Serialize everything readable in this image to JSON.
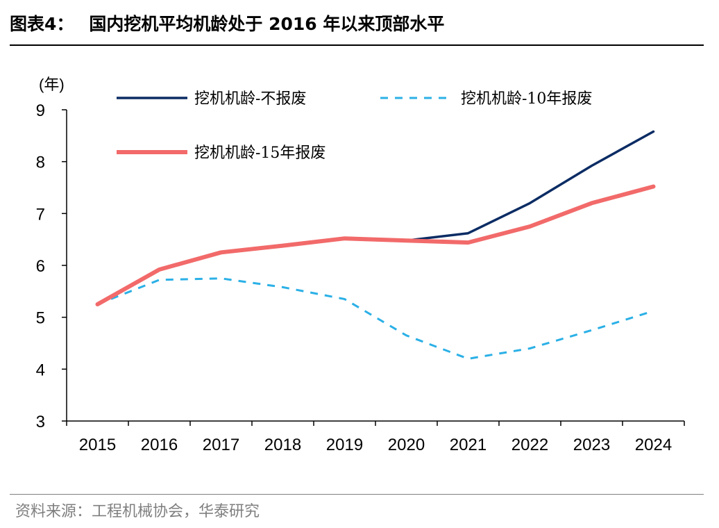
{
  "header": {
    "figure_label": "图表4：",
    "title": "国内挖机平均机龄处于 2016 年以来顶部水平"
  },
  "footer": {
    "source": "资料来源：工程机械协会，华泰研究"
  },
  "colors": {
    "series_no_scrap": "#0b2c64",
    "series_10yr": "#2bb0e6",
    "series_15yr": "#f26a6a",
    "axis": "#000000"
  },
  "chart_data": {
    "type": "line",
    "title": "国内挖机平均机龄处于 2016 年以来顶部水平",
    "ylabel": "(年)",
    "xlabel": "",
    "ylim": [
      3,
      9
    ],
    "yticks": [
      "3",
      "4",
      "5",
      "6",
      "7",
      "8",
      "9"
    ],
    "categories": [
      "2015",
      "2016",
      "2017",
      "2018",
      "2019",
      "2020",
      "2021",
      "2022",
      "2023",
      "2024"
    ],
    "legend_position": "top",
    "series": [
      {
        "name": "挖机机龄-不报废",
        "style": "solid",
        "values": [
          5.25,
          5.92,
          6.25,
          6.38,
          6.52,
          6.48,
          6.62,
          7.2,
          7.92,
          8.58
        ]
      },
      {
        "name": "挖机机龄-10年报废",
        "style": "dashed",
        "values": [
          5.25,
          5.72,
          5.75,
          5.58,
          5.35,
          4.65,
          4.2,
          4.4,
          4.75,
          5.12
        ]
      },
      {
        "name": "挖机机龄-15年报废",
        "style": "solid-thick",
        "values": [
          5.25,
          5.92,
          6.25,
          6.38,
          6.52,
          6.48,
          6.44,
          6.75,
          7.2,
          7.52
        ]
      }
    ]
  }
}
